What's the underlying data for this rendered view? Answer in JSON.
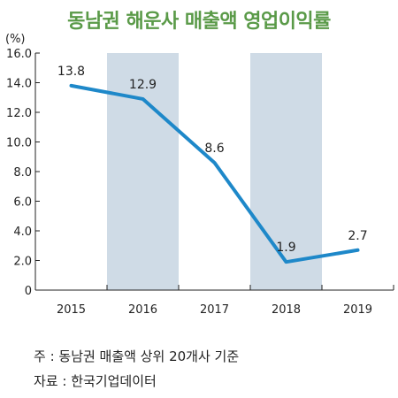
{
  "chart_data": {
    "type": "line",
    "title": "동남권 해운사 매출액 영업이익률",
    "unit_label": "(%)",
    "categories": [
      "2015",
      "2016",
      "2017",
      "2018",
      "2019"
    ],
    "series": [
      {
        "values": [
          13.8,
          12.9,
          8.6,
          1.9,
          2.7
        ]
      }
    ],
    "data_labels": [
      "13.8",
      "12.9",
      "8.6",
      "1.9",
      "2.7"
    ],
    "ylim": [
      0,
      16
    ],
    "y_ticks": [
      "0",
      "2.0",
      "4.0",
      "6.0",
      "8.0",
      "10.0",
      "12.0",
      "14.0",
      "16.0"
    ],
    "shaded_categories": [
      "2016",
      "2018"
    ],
    "grid": false,
    "colors": {
      "line": "#1e88c9",
      "shade": "#cfdbe6",
      "title": "#5a9a48"
    }
  },
  "notes": {
    "source_note": "주 : 동남권 매출액 상위 20개사 기준",
    "data_source": "자료 : 한국기업데이터"
  }
}
